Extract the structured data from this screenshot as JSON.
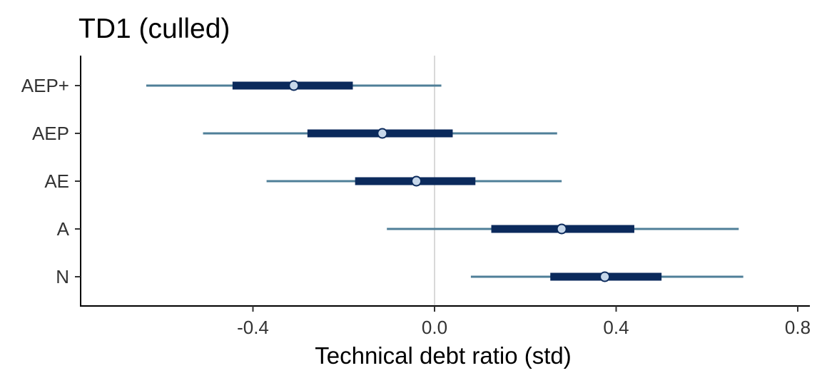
{
  "chart_data": {
    "type": "interval",
    "title": "TD1 (culled)",
    "xlabel": "Technical debt ratio (std)",
    "ylabel": "",
    "xlim": [
      -0.775,
      0.79
    ],
    "xticks": [
      -0.4,
      0.0,
      0.4,
      0.8
    ],
    "xtick_labels": [
      "-0.4",
      "0.0",
      "0.4",
      "0.8"
    ],
    "reference_line": 0.0,
    "categories": [
      "AEP+",
      "AEP",
      "AE",
      "A",
      "N"
    ],
    "intervals": [
      {
        "category": "AEP+",
        "outer_low": -0.635,
        "inner_low": -0.445,
        "point": -0.31,
        "inner_high": -0.18,
        "outer_high": 0.015
      },
      {
        "category": "AEP",
        "outer_low": -0.51,
        "inner_low": -0.28,
        "point": -0.115,
        "inner_high": 0.04,
        "outer_high": 0.27
      },
      {
        "category": "AE",
        "outer_low": -0.37,
        "inner_low": -0.175,
        "point": -0.04,
        "inner_high": 0.09,
        "outer_high": 0.28
      },
      {
        "category": "A",
        "outer_low": -0.105,
        "inner_low": 0.125,
        "point": 0.28,
        "inner_high": 0.44,
        "outer_high": 0.67
      },
      {
        "category": "N",
        "outer_low": 0.08,
        "inner_low": 0.255,
        "point": 0.375,
        "inner_high": 0.5,
        "outer_high": 0.68
      }
    ],
    "grid": false,
    "legend": "none",
    "colors": {
      "outer": "#4f7f98",
      "inner": "#0b2a5c",
      "point_fill": "#c6d7ea",
      "reference": "#d9d9d9"
    }
  }
}
